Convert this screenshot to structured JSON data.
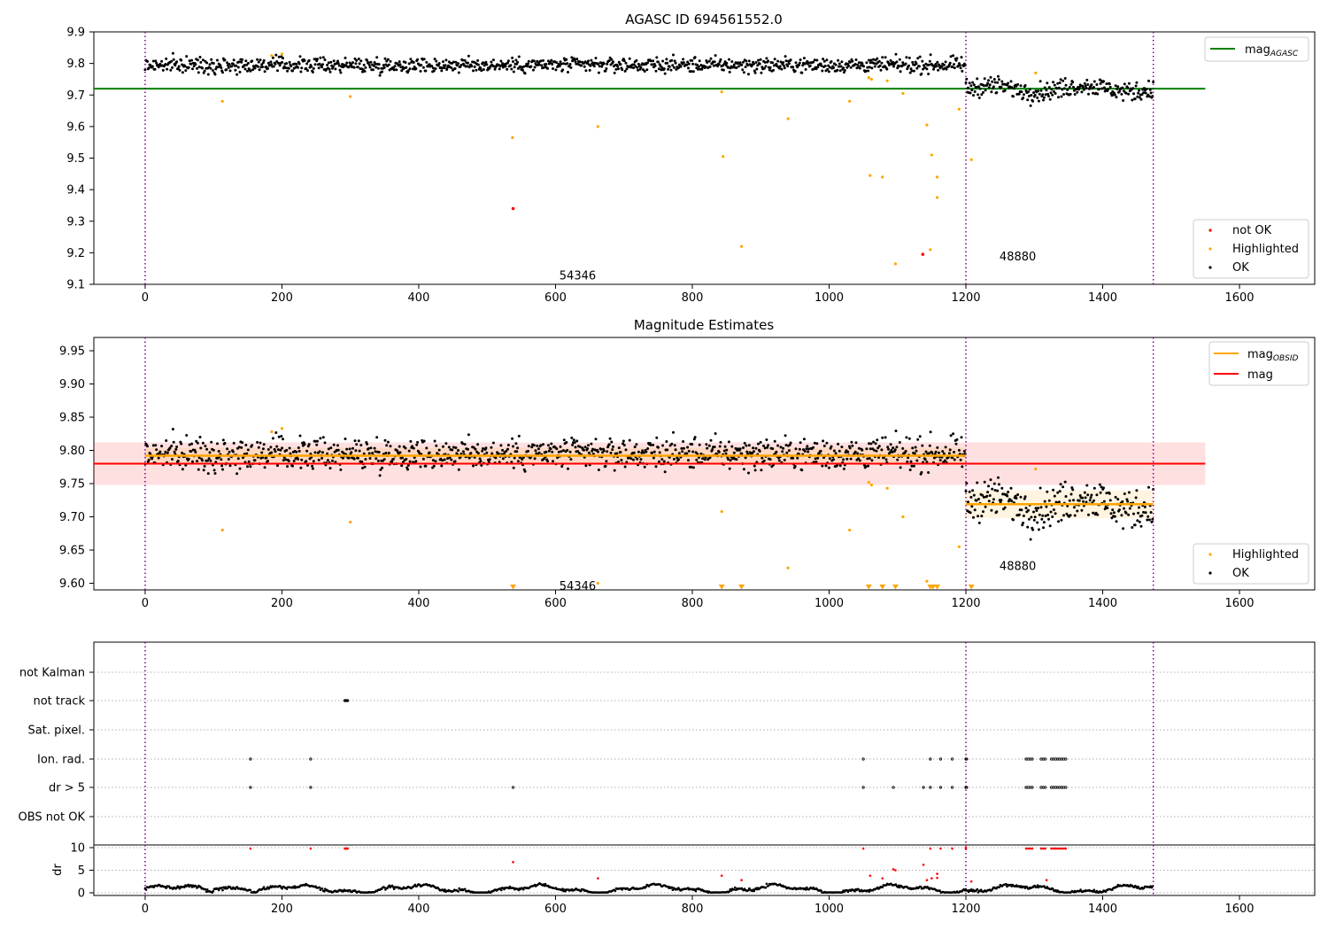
{
  "chart_data": [
    {
      "type": "scatter",
      "title": "AGASC ID 694561552.0",
      "xlim": [
        -75,
        1710
      ],
      "ylim": [
        9.1,
        9.9
      ],
      "xticks": [
        0,
        200,
        400,
        600,
        800,
        1000,
        1200,
        1400,
        1600
      ],
      "yticks": [
        "9.1",
        "9.2",
        "9.3",
        "9.4",
        "9.5",
        "9.6",
        "9.7",
        "9.8",
        "9.9"
      ],
      "vlines": [
        0,
        1200,
        1474
      ],
      "obsid_labels": [
        {
          "text": "54346",
          "x": 600,
          "y": 9.13
        },
        {
          "text": "48880",
          "x": 1338,
          "y": 9.19
        }
      ],
      "mag_agasc": {
        "value": 9.72,
        "x_range": [
          -75,
          1550
        ],
        "color": "#008000"
      },
      "ok_bands": [
        {
          "x_range": [
            0,
            1200
          ],
          "mean": 9.795,
          "sd": 0.012
        },
        {
          "x_range": [
            1200,
            1474
          ],
          "mean": 9.72,
          "sd": 0.015
        }
      ],
      "highlighted": [
        [
          113,
          9.68
        ],
        [
          185,
          9.825
        ],
        [
          200,
          9.83
        ],
        [
          300,
          9.695
        ],
        [
          537,
          9.565
        ],
        [
          662,
          9.6
        ],
        [
          843,
          9.71
        ],
        [
          845,
          9.505
        ],
        [
          872,
          9.22
        ],
        [
          940,
          9.625
        ],
        [
          1030,
          9.68
        ],
        [
          1058,
          9.755
        ],
        [
          1060,
          9.445
        ],
        [
          1062,
          9.75
        ],
        [
          1078,
          9.44
        ],
        [
          1085,
          9.745
        ],
        [
          1097,
          9.165
        ],
        [
          1108,
          9.705
        ],
        [
          1143,
          9.605
        ],
        [
          1148,
          9.21
        ],
        [
          1150,
          9.51
        ],
        [
          1158,
          9.44
        ],
        [
          1158,
          9.375
        ],
        [
          1190,
          9.655
        ],
        [
          1208,
          9.495
        ],
        [
          1302,
          9.77
        ]
      ],
      "not_ok": [
        [
          538,
          9.34
        ],
        [
          1137,
          9.195
        ]
      ],
      "legend_top": {
        "entries": [
          {
            "label": "mag",
            "subscript": "AGASC",
            "color": "#008000"
          }
        ],
        "placement": "upper right"
      },
      "legend_bottom": {
        "entries": [
          {
            "label": "not OK",
            "color": "#ff0000"
          },
          {
            "label": "Highlighted",
            "color": "#ffa500"
          },
          {
            "label": "OK",
            "color": "#000000"
          }
        ],
        "placement": "lower right"
      }
    },
    {
      "type": "scatter",
      "title": "Magnitude Estimates",
      "xlim": [
        -75,
        1710
      ],
      "ylim": [
        9.59,
        9.97
      ],
      "xticks": [
        0,
        200,
        400,
        600,
        800,
        1000,
        1200,
        1400,
        1600
      ],
      "yticks": [
        "9.60",
        "9.65",
        "9.70",
        "9.75",
        "9.80",
        "9.85",
        "9.90",
        "9.95"
      ],
      "vlines": [
        0,
        1200,
        1474
      ],
      "obsid_labels": [
        {
          "text": "54346",
          "x": 600,
          "y": 9.597
        },
        {
          "text": "48880",
          "x": 1338,
          "y": 9.627
        }
      ],
      "mag_line": {
        "value": 9.78,
        "x_range": [
          -75,
          1550
        ],
        "band": [
          9.748,
          9.812
        ],
        "color": "#ff0000"
      },
      "mag_obsid": [
        {
          "value": 9.792,
          "x_range": [
            0,
            1200
          ],
          "band": [
            9.78,
            9.804
          ]
        },
        {
          "value": 9.719,
          "x_range": [
            1200,
            1474
          ],
          "band": [
            9.698,
            9.74
          ]
        }
      ],
      "highlighted": [
        [
          113,
          9.68
        ],
        [
          185,
          9.828
        ],
        [
          200,
          9.833
        ],
        [
          300,
          9.692
        ],
        [
          662,
          9.6
        ],
        [
          843,
          9.708
        ],
        [
          940,
          9.623
        ],
        [
          1030,
          9.68
        ],
        [
          1058,
          9.752
        ],
        [
          1062,
          9.748
        ],
        [
          1085,
          9.743
        ],
        [
          1108,
          9.7
        ],
        [
          1143,
          9.603
        ],
        [
          1190,
          9.655
        ],
        [
          1302,
          9.772
        ]
      ],
      "below_range": [
        538,
        843,
        872,
        1058,
        1078,
        1097,
        1148,
        1152,
        1158,
        1208
      ],
      "legend_top": {
        "entries": [
          {
            "label": "mag",
            "subscript": "OBSID",
            "color": "#ffa500"
          },
          {
            "label": "mag",
            "color": "#ff0000"
          }
        ],
        "placement": "upper right"
      },
      "legend_bottom": {
        "entries": [
          {
            "label": "Highlighted",
            "color": "#ffa500"
          },
          {
            "label": "OK",
            "color": "#000000"
          }
        ],
        "placement": "lower right"
      }
    },
    {
      "type": "scatter",
      "title": "",
      "xlim": [
        -75,
        1710
      ],
      "vlines": [
        0,
        1200,
        1474
      ],
      "flag_labels": [
        "not Kalman",
        "not track",
        "Sat. pixel.",
        "Ion. rad.",
        "dr > 5",
        "OBS not OK"
      ],
      "flags": {
        "not track": [
          292,
          293,
          294,
          295,
          296
        ],
        "Ion. rad.": [
          154,
          242,
          1050,
          1148,
          1163,
          1180,
          1200,
          1201,
          1288,
          1291,
          1294,
          1297,
          1310,
          1313,
          1316,
          1325,
          1328,
          1331,
          1334,
          1337,
          1340,
          1343,
          1346
        ],
        "dr > 5": [
          154,
          242,
          538,
          1050,
          1094,
          1138,
          1148,
          1163,
          1180,
          1200,
          1201,
          1288,
          1291,
          1294,
          1297,
          1310,
          1313,
          1316,
          1325,
          1328,
          1331,
          1334,
          1337,
          1340,
          1343,
          1346
        ]
      }
    },
    {
      "type": "scatter",
      "title": "",
      "xlim": [
        -75,
        1710
      ],
      "ylim": [
        -0.5,
        11
      ],
      "xticks": [
        0,
        200,
        400,
        600,
        800,
        1000,
        1200,
        1400,
        1600
      ],
      "yticks": [
        "0",
        "5",
        "10"
      ],
      "ylabel": "dr",
      "vlines": [
        0,
        1200,
        1474
      ],
      "dr_red": [
        [
          154,
          9.8
        ],
        [
          242,
          9.8
        ],
        [
          292,
          9.8
        ],
        [
          293,
          9.8
        ],
        [
          294,
          9.8
        ],
        [
          295,
          9.8
        ],
        [
          296,
          9.8
        ],
        [
          538,
          6.8
        ],
        [
          662,
          3.2
        ],
        [
          843,
          3.8
        ],
        [
          872,
          2.8
        ],
        [
          1050,
          9.8
        ],
        [
          1060,
          3.8
        ],
        [
          1078,
          3.2
        ],
        [
          1094,
          5.2
        ],
        [
          1097,
          5.0
        ],
        [
          1138,
          6.2
        ],
        [
          1143,
          2.8
        ],
        [
          1148,
          9.8
        ],
        [
          1150,
          3.2
        ],
        [
          1158,
          4.2
        ],
        [
          1158,
          3.3
        ],
        [
          1163,
          9.8
        ],
        [
          1180,
          9.8
        ],
        [
          1200,
          9.8
        ],
        [
          1200,
          10.0
        ],
        [
          1208,
          2.5
        ],
        [
          1288,
          9.8
        ],
        [
          1291,
          9.8
        ],
        [
          1294,
          9.8
        ],
        [
          1297,
          9.8
        ],
        [
          1310,
          9.8
        ],
        [
          1313,
          9.8
        ],
        [
          1316,
          9.8
        ],
        [
          1318,
          2.8
        ],
        [
          1325,
          9.8
        ],
        [
          1328,
          9.8
        ],
        [
          1331,
          9.8
        ],
        [
          1334,
          9.8
        ],
        [
          1337,
          9.8
        ],
        [
          1340,
          9.8
        ],
        [
          1343,
          9.8
        ],
        [
          1346,
          9.8
        ]
      ]
    }
  ]
}
